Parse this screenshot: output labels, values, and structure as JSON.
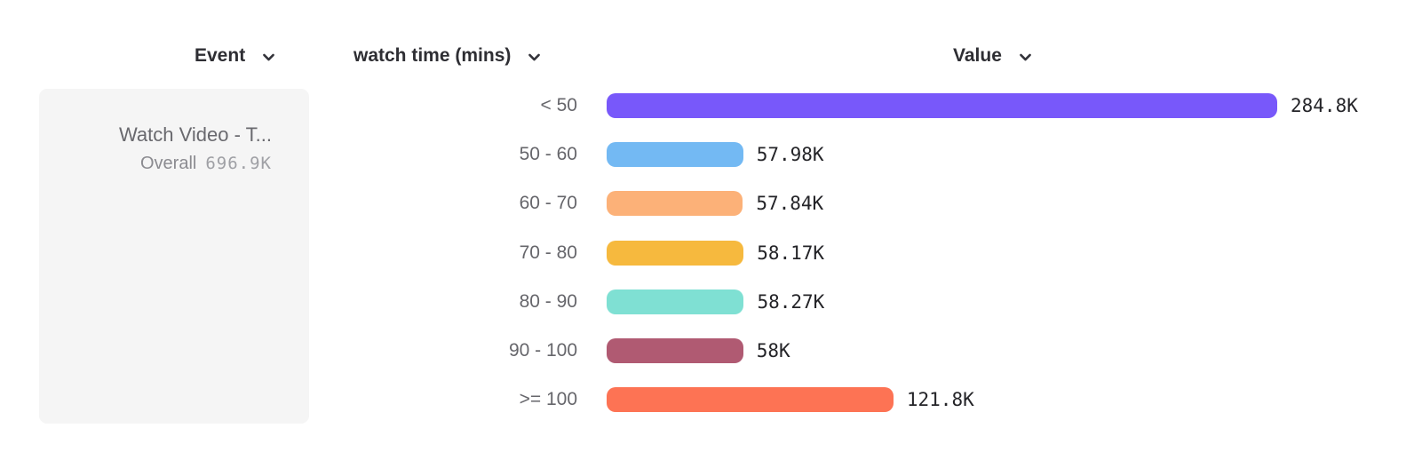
{
  "columns": {
    "event": {
      "label": "Event"
    },
    "breakdown": {
      "label": "watch time (mins)"
    },
    "value": {
      "label": "Value"
    }
  },
  "event_card": {
    "name": "Watch Video - T...",
    "overall_label": "Overall",
    "overall_value": "696.9K"
  },
  "chart_data": {
    "type": "bar",
    "orientation": "horizontal",
    "title": "",
    "breakdown_property": "watch time (mins)",
    "categories": [
      "< 50",
      "50 - 60",
      "60 - 70",
      "70 - 80",
      "80 - 90",
      "90 - 100",
      ">= 100"
    ],
    "values": [
      284800,
      57980,
      57840,
      58170,
      58270,
      58000,
      121800
    ],
    "value_labels": [
      "284.8K",
      "57.98K",
      "57.84K",
      "58.17K",
      "58.27K",
      "58K",
      "121.8K"
    ],
    "bar_colors": [
      "#7858FA",
      "#73B9F3",
      "#FCB178",
      "#F6B93E",
      "#7FE0D3",
      "#B05A72",
      "#FD7354"
    ],
    "overall_total": 696900,
    "xlim": [
      0,
      284800
    ],
    "grid": false,
    "legend": false
  }
}
